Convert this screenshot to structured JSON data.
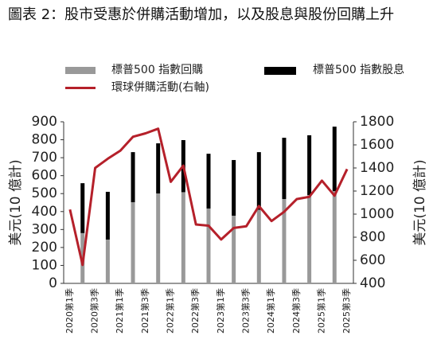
{
  "chart_data": {
    "type": "bar_line",
    "title": "圖表 2：股市受惠於併購活動增加，以及股息與股份回購上升",
    "ylabel": "美元(10 億計)",
    "y2label": "美元(10 億計)",
    "categories": [
      "2020第1季",
      null,
      "2020第3季",
      null,
      "2021第1季",
      null,
      "2021第3季",
      null,
      "2022第1季",
      null,
      "2022第3季",
      null,
      "2023第1季",
      null,
      "2023第3季",
      null,
      "2024第1季",
      null,
      "2024第3季",
      null,
      "2025第1季",
      null,
      "2025第3季"
    ],
    "series": [
      {
        "name": "標普500 指數回購",
        "color": "#999999",
        "type": "bar",
        "values": [
          null,
          280,
          null,
          244,
          null,
          452,
          null,
          501,
          null,
          508,
          null,
          417,
          null,
          377,
          null,
          410,
          null,
          470,
          null,
          492,
          null,
          514,
          null
        ]
      },
      {
        "name": "標普500 指數股息",
        "color": "#000000",
        "type": "bar",
        "values": [
          null,
          278,
          null,
          266,
          null,
          279,
          null,
          279,
          null,
          290,
          null,
          305,
          null,
          310,
          null,
          321,
          null,
          341,
          null,
          333,
          null,
          359,
          null
        ]
      },
      {
        "name": "環球併購活動(右軸)",
        "color": "#b5202a",
        "type": "line",
        "axis": "y2",
        "values": [
          1040,
          560,
          1400,
          1480,
          1550,
          1670,
          1700,
          1740,
          1280,
          1420,
          910,
          900,
          780,
          880,
          895,
          1070,
          940,
          1020,
          1130,
          1150,
          1290,
          1160,
          1390
        ]
      }
    ],
    "ylim": [
      0,
      900
    ],
    "yticks": [
      0,
      100,
      200,
      300,
      400,
      500,
      600,
      700,
      800,
      900
    ],
    "y2lim": [
      400,
      1800
    ],
    "y2ticks": [
      400,
      600,
      800,
      1000,
      1200,
      1400,
      1600,
      1800
    ]
  }
}
